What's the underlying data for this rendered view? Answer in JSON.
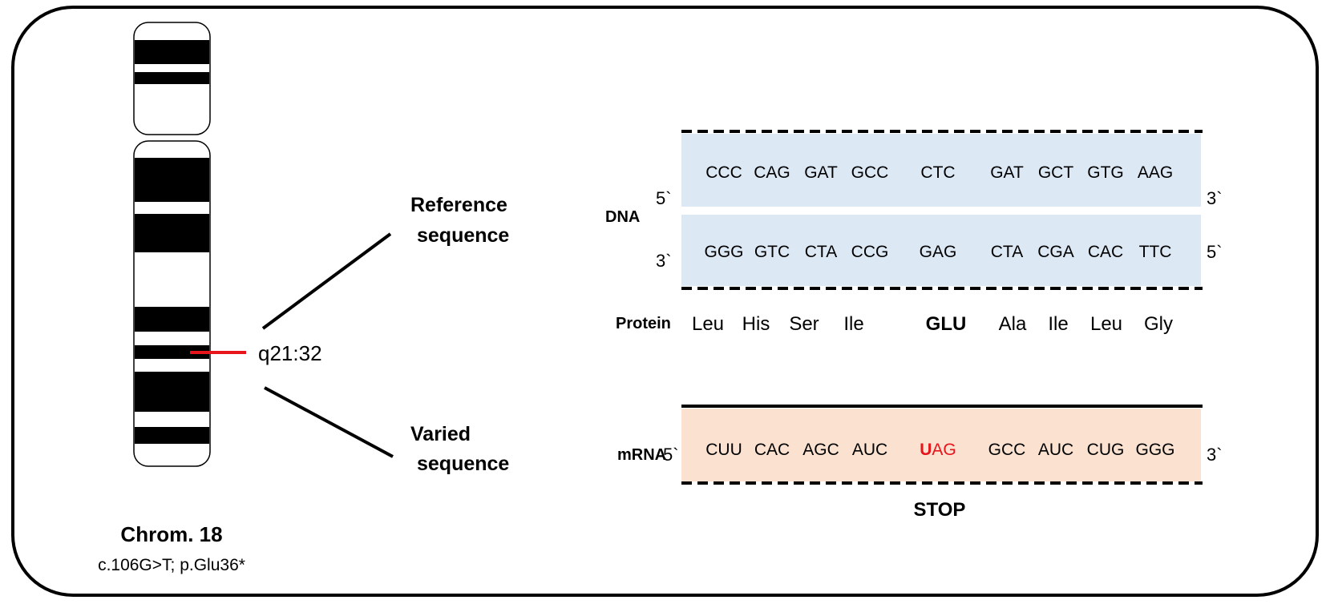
{
  "chromosome": {
    "name": "Chrom. 18",
    "variant": "c.106G>T; p.Glu36*",
    "locus": "q21:32"
  },
  "branches": {
    "reference": [
      "Reference",
      "sequence"
    ],
    "varied": [
      "Varied",
      "sequence"
    ]
  },
  "dna": {
    "label": "DNA",
    "top_left": "5`",
    "top_right": "3`",
    "bottom_left": "3`",
    "bottom_right": "5`",
    "top_strand": [
      "CCC",
      "CAG",
      "GAT",
      "GCC",
      "CTC",
      "GAT",
      "GCT",
      "GTG",
      "AAG"
    ],
    "bottom_strand": [
      "GGG",
      "GTC",
      "CTA",
      "CCG",
      "GAG",
      "CTA",
      "CGA",
      "CAC",
      "TTC"
    ]
  },
  "protein": {
    "label": "Protein",
    "residues": [
      "Leu",
      "His",
      "Ser",
      "Ile",
      "GLU",
      "Ala",
      "Ile",
      "Leu",
      "Gly"
    ],
    "highlight_index": 4
  },
  "mrna": {
    "label": "mRNA",
    "left": "5`",
    "right": "3`",
    "codons": [
      "CUU",
      "CAC",
      "AGC",
      "AUC",
      "UAG",
      "GCC",
      "AUC",
      "CUG",
      "GGG"
    ],
    "mutated_index": 4,
    "mutated_base": "U",
    "mutated_rest": "AG",
    "stop_label": "STOP"
  },
  "colors": {
    "dna_box": "#dde8f5",
    "mrna_box": "#fae1d0",
    "mutation": "#e8141b",
    "marker": "#e8141b"
  }
}
